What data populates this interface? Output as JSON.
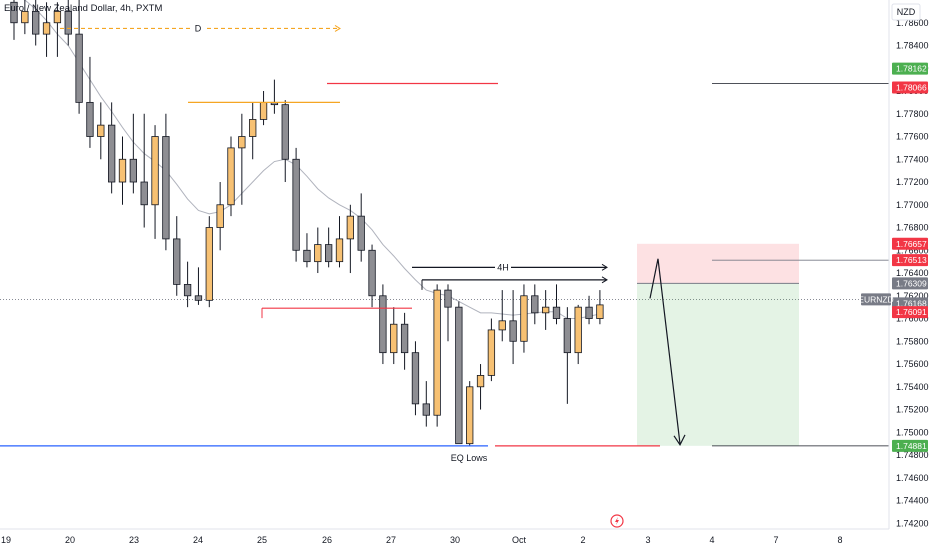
{
  "chart_data": {
    "type": "candlestick",
    "title": "Euro / New Zealand Dollar, 4h, PXTM",
    "currency": "NZD",
    "symbol": "EURNZD",
    "ylim": [
      1.7415,
      1.788
    ],
    "y_ticks": [
      "1.78600",
      "1.78400",
      "1.78200",
      "1.78000",
      "1.77800",
      "1.77600",
      "1.77400",
      "1.77200",
      "1.77000",
      "1.76800",
      "1.76600",
      "1.76400",
      "1.76200",
      "1.76000",
      "1.75800",
      "1.75600",
      "1.75400",
      "1.75200",
      "1.75000",
      "1.74800",
      "1.74600",
      "1.74400",
      "1.74200"
    ],
    "x_ticks": [
      "19",
      "20",
      "23",
      "24",
      "25",
      "26",
      "27",
      "30",
      "Oct",
      "2",
      "3",
      "4",
      "7",
      "8"
    ],
    "price_tags": [
      {
        "label": "1.78162",
        "value": 1.78162,
        "color": "#4caf50"
      },
      {
        "label": "1.78066",
        "value": 1.78066,
        "color": "#f23645"
      },
      {
        "label": "1.76657",
        "value": 1.76657,
        "color": "#f23645"
      },
      {
        "label": "1.76513",
        "value": 1.76513,
        "color": "#f23645"
      },
      {
        "label": "1.76309",
        "value": 1.76309,
        "color": "#787b86"
      },
      {
        "label": "1.76168",
        "value": 1.76168,
        "color": "#787b86"
      },
      {
        "label": "1.76091",
        "value": 1.76091,
        "color": "#f23645"
      },
      {
        "label": "1.74881",
        "value": 1.74881,
        "color": "#4caf50"
      }
    ],
    "symbol_tag": {
      "label": "EURNZD",
      "value": 1.76168
    },
    "candles": [
      [
        1.7878,
        1.788,
        1.7845,
        1.786
      ],
      [
        1.786,
        1.788,
        1.785,
        1.787
      ],
      [
        1.787,
        1.788,
        1.784,
        1.785
      ],
      [
        1.785,
        1.7878,
        1.783,
        1.786
      ],
      [
        1.786,
        1.7878,
        1.783,
        1.787
      ],
      [
        1.787,
        1.788,
        1.784,
        1.785
      ],
      [
        1.785,
        1.788,
        1.778,
        1.779
      ],
      [
        1.779,
        1.783,
        1.775,
        1.776
      ],
      [
        1.776,
        1.779,
        1.774,
        1.777
      ],
      [
        1.777,
        1.779,
        1.771,
        1.772
      ],
      [
        1.772,
        1.776,
        1.77,
        1.774
      ],
      [
        1.774,
        1.778,
        1.771,
        1.772
      ],
      [
        1.772,
        1.778,
        1.768,
        1.77
      ],
      [
        1.77,
        1.777,
        1.767,
        1.776
      ],
      [
        1.776,
        1.778,
        1.766,
        1.767
      ],
      [
        1.767,
        1.769,
        1.762,
        1.763
      ],
      [
        1.763,
        1.765,
        1.761,
        1.762
      ],
      [
        1.762,
        1.7645,
        1.7612,
        1.7616
      ],
      [
        1.7616,
        1.769,
        1.761,
        1.768
      ],
      [
        1.768,
        1.772,
        1.766,
        1.77
      ],
      [
        1.77,
        1.776,
        1.769,
        1.775
      ],
      [
        1.775,
        1.778,
        1.77,
        1.776
      ],
      [
        1.776,
        1.779,
        1.774,
        1.7775
      ],
      [
        1.7775,
        1.78,
        1.777,
        1.779
      ],
      [
        1.779,
        1.781,
        1.778,
        1.7788
      ],
      [
        1.7788,
        1.7792,
        1.772,
        1.774
      ],
      [
        1.774,
        1.775,
        1.765,
        1.766
      ],
      [
        1.766,
        1.7675,
        1.7645,
        1.765
      ],
      [
        1.765,
        1.768,
        1.764,
        1.7665
      ],
      [
        1.7665,
        1.768,
        1.7645,
        1.765
      ],
      [
        1.765,
        1.769,
        1.7645,
        1.767
      ],
      [
        1.767,
        1.77,
        1.764,
        1.769
      ],
      [
        1.769,
        1.771,
        1.765,
        1.766
      ],
      [
        1.766,
        1.7665,
        1.761,
        1.762
      ],
      [
        1.762,
        1.763,
        1.756,
        1.757
      ],
      [
        1.757,
        1.761,
        1.756,
        1.7595
      ],
      [
        1.7595,
        1.7605,
        1.7555,
        1.757
      ],
      [
        1.757,
        1.758,
        1.7515,
        1.7525
      ],
      [
        1.7525,
        1.7545,
        1.7505,
        1.7515
      ],
      [
        1.7515,
        1.763,
        1.7505,
        1.7625
      ],
      [
        1.7625,
        1.763,
        1.758,
        1.761
      ],
      [
        1.761,
        1.7615,
        1.749,
        1.749
      ],
      [
        1.749,
        1.7545,
        1.7488,
        1.754
      ],
      [
        1.754,
        1.756,
        1.752,
        1.755
      ],
      [
        1.755,
        1.76,
        1.7545,
        1.759
      ],
      [
        1.759,
        1.7625,
        1.758,
        1.7598
      ],
      [
        1.7598,
        1.7625,
        1.756,
        1.758
      ],
      [
        1.758,
        1.763,
        1.757,
        1.762
      ],
      [
        1.762,
        1.763,
        1.7595,
        1.7605
      ],
      [
        1.7605,
        1.7625,
        1.759,
        1.761
      ],
      [
        1.761,
        1.763,
        1.7595,
        1.76
      ],
      [
        1.76,
        1.761,
        1.7525,
        1.757
      ],
      [
        1.757,
        1.7612,
        1.756,
        1.761
      ],
      [
        1.761,
        1.762,
        1.7595,
        1.76
      ],
      [
        1.76,
        1.7625,
        1.7595,
        1.7612
      ]
    ],
    "moving_average": [
      1.7885,
      1.788,
      1.7872,
      1.7862,
      1.785,
      1.784,
      1.7825,
      1.781,
      1.7795,
      1.7782,
      1.7768,
      1.7755,
      1.7745,
      1.7738,
      1.773,
      1.7718,
      1.7705,
      1.7695,
      1.7692,
      1.7694,
      1.77,
      1.771,
      1.772,
      1.773,
      1.7738,
      1.774,
      1.7735,
      1.7725,
      1.7714,
      1.7706,
      1.77,
      1.7695,
      1.7688,
      1.7678,
      1.7665,
      1.7655,
      1.7644,
      1.7634,
      1.7625,
      1.7622,
      1.762,
      1.7615,
      1.761,
      1.7605,
      1.7605,
      1.7604,
      1.7603,
      1.7604,
      1.7605,
      1.7606,
      1.7606,
      1.76,
      1.76,
      1.7602,
      1.7604
    ],
    "annotations": [
      {
        "label": "D",
        "value": 1.7855,
        "color": "#f5a623",
        "style": "arrow"
      },
      {
        "label": "",
        "value": 1.779,
        "color": "#f5a623",
        "style": "line"
      },
      {
        "label": "",
        "value": 1.78066,
        "color": "#f23645",
        "style": "line"
      },
      {
        "label": "",
        "value": 1.76091,
        "color": "#f23645",
        "style": "line"
      },
      {
        "label": "4H",
        "value": 1.7645,
        "color": "#131722",
        "style": "arrow"
      },
      {
        "label": "",
        "value": 1.7634,
        "color": "#131722",
        "style": "arrow"
      },
      {
        "label": "EQ Lows",
        "value": 1.74881,
        "color": "#2962ff",
        "style": "line"
      },
      {
        "label": "",
        "value": 1.74881,
        "color": "#f23645",
        "style": "line"
      }
    ],
    "position": {
      "type": "short",
      "stop": 1.76657,
      "entry": 1.76309,
      "target": 1.74881
    }
  }
}
